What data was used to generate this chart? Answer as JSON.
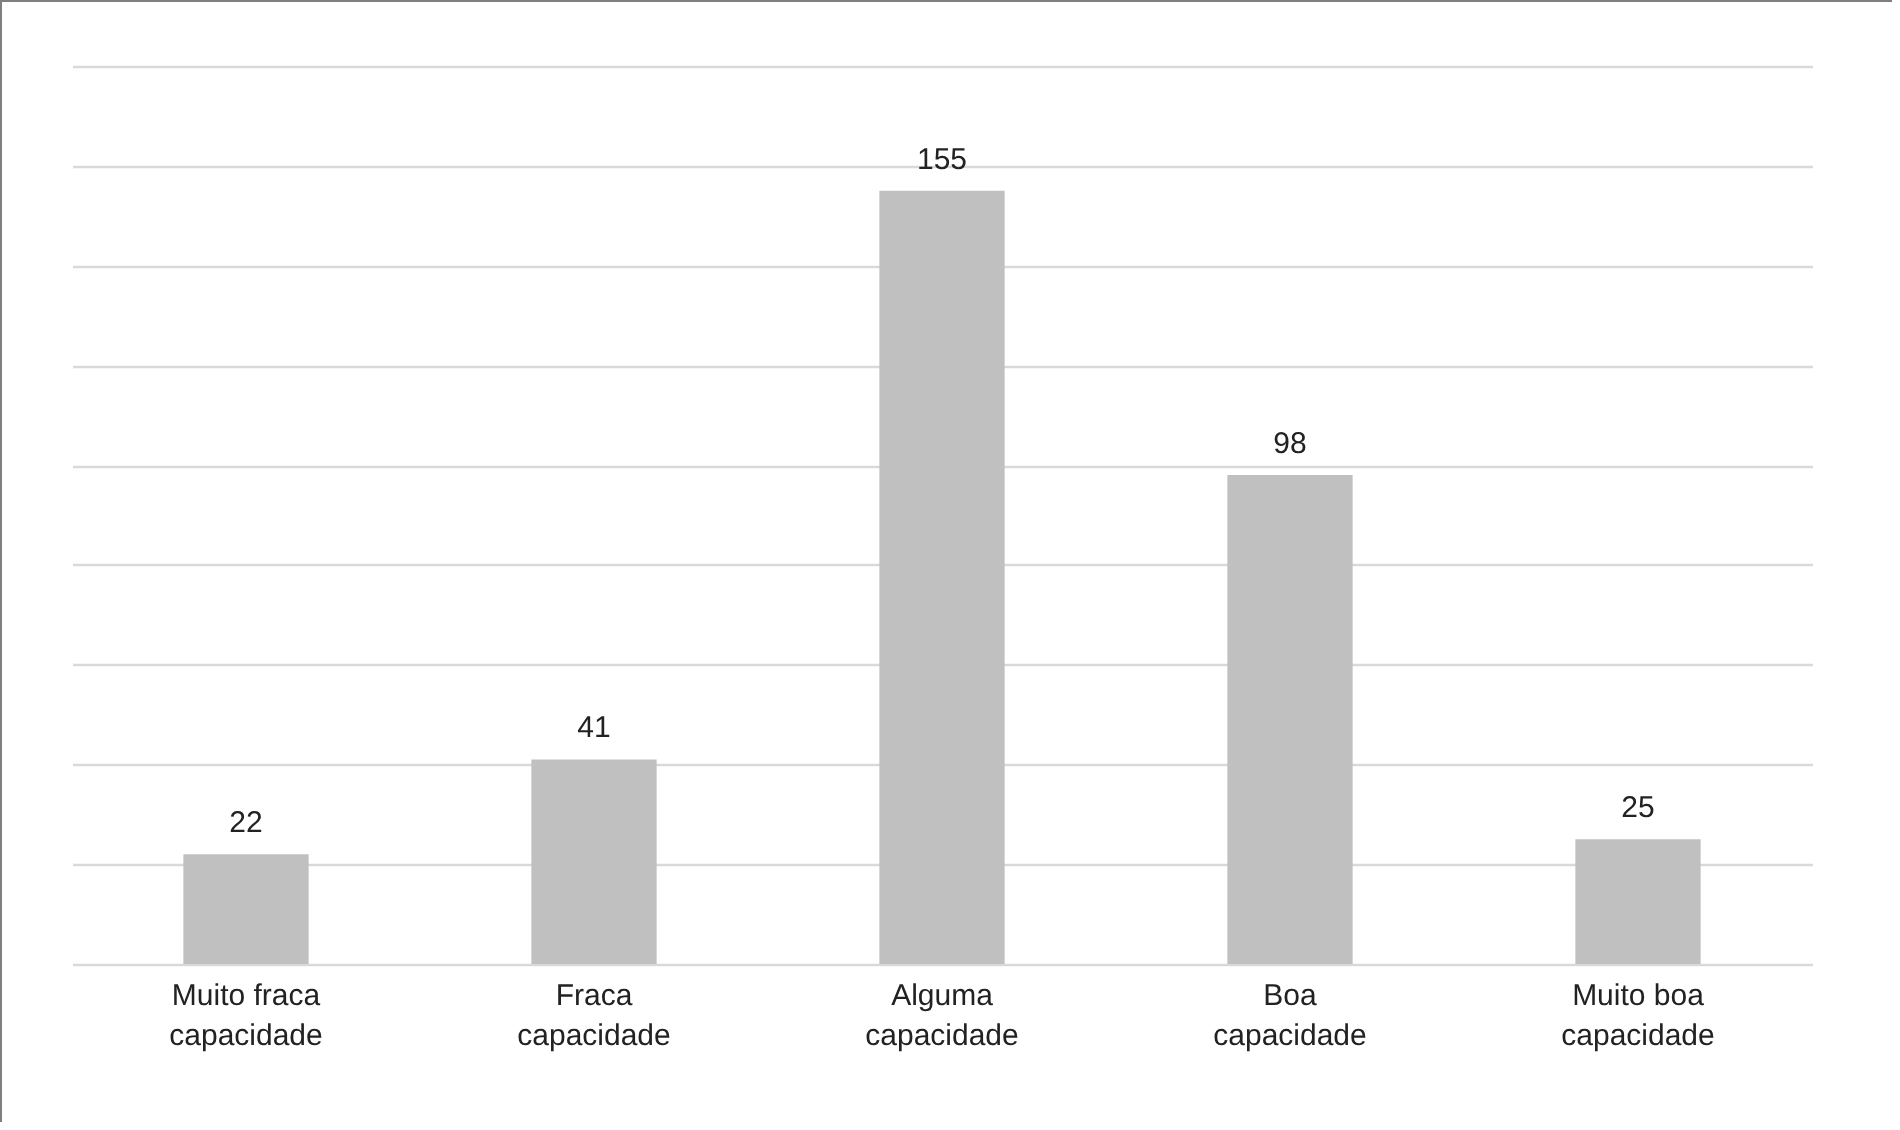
{
  "chart_data": {
    "type": "bar",
    "categories": [
      "Muito fraca capacidade",
      "Fraca capacidade",
      "Alguma capacidade",
      "Boa capacidade",
      "Muito boa capacidade"
    ],
    "values": [
      22,
      41,
      155,
      98,
      25
    ],
    "color": "#c0c0c0",
    "ylim": [
      0,
      180
    ],
    "yticks": [
      {
        "value": 0,
        "label": null
      },
      {
        "value": 20,
        "label": null
      },
      {
        "value": 40,
        "label": null
      },
      {
        "value": 60,
        "label": null
      },
      {
        "value": 80,
        "label": null
      },
      {
        "value": 100,
        "label": null
      },
      {
        "value": 120,
        "label": null
      },
      {
        "value": 140,
        "label": null
      },
      {
        "value": 160,
        "label": null
      },
      {
        "value": 180,
        "label": null
      }
    ],
    "grid": "y",
    "tick_labels": "x",
    "data_labels": true
  }
}
